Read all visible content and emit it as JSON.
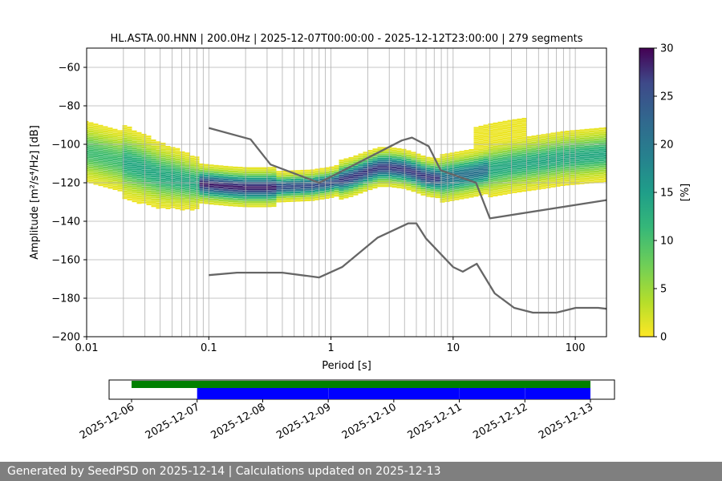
{
  "chart_data": [
    {
      "type": "heatmap",
      "title": "HL.ASTA.00.HNN | 200.0Hz | 2025-12-07T00:00:00 - 2025-12-12T23:00:00 | 279 segments",
      "xlabel": "Period [s]",
      "ylabel": "Amplitude [m²/s⁴/Hz] [dB]",
      "xscale": "log",
      "xlim": [
        0.01,
        180
      ],
      "ylim": [
        -200,
        -50
      ],
      "x_ticks": [
        "0.01",
        "0.1",
        "1",
        "10",
        "100"
      ],
      "y_ticks": [
        "−60",
        "−80",
        "−100",
        "−120",
        "−140",
        "−160",
        "−180",
        "−200"
      ],
      "grid": true,
      "colorbar": {
        "label": "[%]",
        "min": 0,
        "max": 30,
        "ticks": [
          "0",
          "5",
          "10",
          "15",
          "20",
          "25",
          "30"
        ],
        "colormap": "viridis_r"
      },
      "psd_mode": {
        "x": [
          0.005,
          0.007,
          0.01,
          0.013,
          0.017,
          0.022,
          0.03,
          0.04,
          0.055,
          0.075,
          0.1,
          0.15,
          0.2,
          0.3,
          0.45,
          0.7,
          1.0,
          1.5,
          2.0,
          2.5,
          3.0,
          4.0,
          5.0,
          6.0,
          8.0,
          10,
          15,
          20,
          30,
          50,
          80,
          120,
          180
        ],
        "y": [
          -102,
          -103,
          -104,
          -106,
          -108,
          -110,
          -113,
          -116,
          -118,
          -120,
          -121,
          -122,
          -122.5,
          -122.5,
          -122,
          -121.5,
          -120,
          -117,
          -114,
          -112,
          -112,
          -113,
          -115,
          -117,
          -118,
          -117,
          -115,
          -113,
          -111,
          -109,
          -107,
          -106,
          -105
        ]
      },
      "noise_models": [
        {
          "name": "NHNM",
          "x": [
            0.1,
            0.22,
            0.32,
            0.8,
            3.8,
            4.6,
            6.3,
            7.9,
            15.4,
            20,
            180
          ],
          "y": [
            -91.5,
            -97.4,
            -110.5,
            -120,
            -98,
            -96.5,
            -101,
            -113.5,
            -120,
            -138.5,
            -129
          ]
        },
        {
          "name": "NLNM",
          "x": [
            0.1,
            0.17,
            0.4,
            0.8,
            1.24,
            2.4,
            4.3,
            5.0,
            6.0,
            10,
            12,
            15.6,
            21.9,
            31.6,
            45,
            70,
            101,
            154,
            180
          ],
          "y": [
            -168,
            -166.7,
            -166.7,
            -169.2,
            -163.7,
            -148.6,
            -141.1,
            -141.1,
            -149,
            -163.8,
            -166.2,
            -162.1,
            -177.5,
            -185,
            -187.5,
            -187.5,
            -185,
            -185,
            -185.5
          ]
        }
      ]
    },
    {
      "type": "timeline",
      "x_ticks": [
        "2025-12-06",
        "2025-12-07",
        "2025-12-08",
        "2025-12-09",
        "2025-12-10",
        "2025-12-11",
        "2025-12-12",
        "2025-12-13"
      ],
      "data_availability": {
        "start": "2025-12-06T00:00",
        "end": "2025-12-13T00:00",
        "color": "#008000"
      },
      "used_segments": {
        "color": "#0000ff",
        "intervals": [
          [
            "2025-12-07T00:00",
            "2025-12-08T23:59"
          ],
          [
            "2025-12-09T00:01",
            "2025-12-10T23:59"
          ],
          [
            "2025-12-11T00:01",
            "2025-12-11T23:59"
          ],
          [
            "2025-12-12T00:01",
            "2025-12-13T00:00"
          ]
        ]
      }
    }
  ],
  "footer": {
    "text": "Generated by SeedPSD on 2025-12-14 | Calculations updated on 2025-12-13"
  }
}
